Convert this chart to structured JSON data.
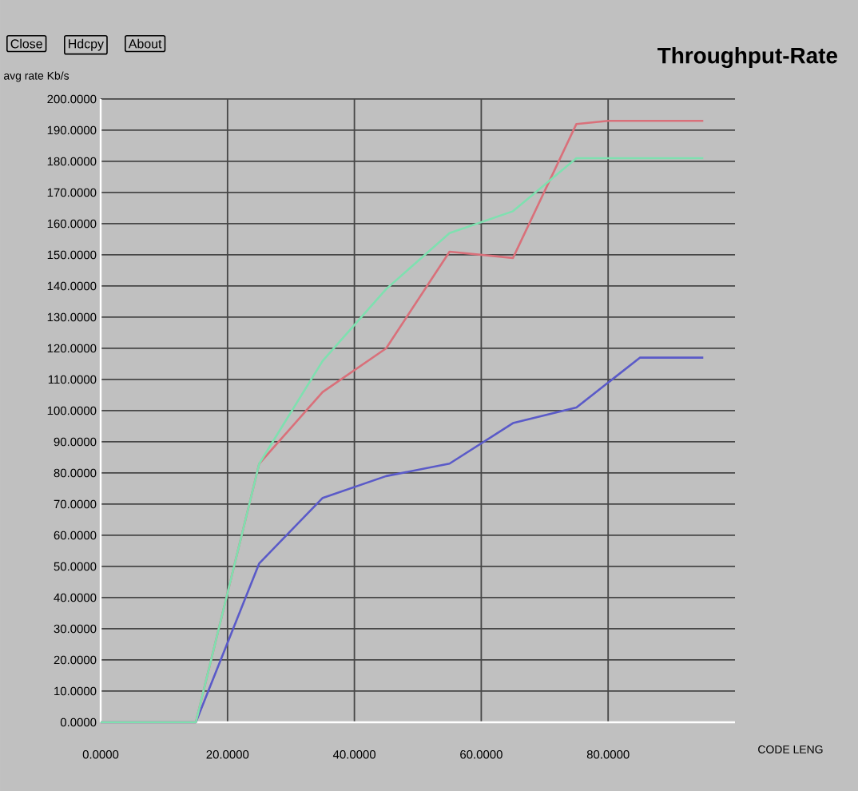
{
  "chart_data": {
    "type": "line",
    "title": "Throughput-Rate",
    "ylabel": "avg rate Kb/s",
    "xlabel": "CODE LENG",
    "annotations": [
      "Close",
      "Hdcpy",
      "About"
    ],
    "x": [
      0,
      15,
      25,
      35,
      45,
      55,
      65,
      75,
      85,
      95
    ],
    "series": [
      {
        "color": "#5a5ac8",
        "values": [
          0,
          0,
          51,
          72,
          79,
          83,
          96,
          101,
          117,
          117
        ]
      },
      {
        "color": "#d9707a",
        "x": [
          0,
          15,
          25,
          35,
          45,
          55,
          65,
          75,
          80,
          95
        ],
        "values": [
          0,
          0,
          83,
          106,
          120,
          151,
          149,
          192,
          193,
          193
        ]
      },
      {
        "color": "#7fe0b0",
        "values": [
          0,
          0,
          83,
          116,
          139,
          157,
          164,
          181,
          181,
          181
        ]
      }
    ],
    "xlim": [
      0,
      100
    ],
    "ylim": [
      0,
      200
    ],
    "xticks": [
      {
        "value": 0,
        "label": "0.0000"
      },
      {
        "value": 20,
        "label": "20.0000"
      },
      {
        "value": 40,
        "label": "40.0000"
      },
      {
        "value": 60,
        "label": "60.0000"
      },
      {
        "value": 80,
        "label": "80.0000"
      }
    ],
    "yticks": [
      {
        "value": 0,
        "label": "0.0000"
      },
      {
        "value": 10,
        "label": "10.0000"
      },
      {
        "value": 20,
        "label": "20.0000"
      },
      {
        "value": 30,
        "label": "30.0000"
      },
      {
        "value": 40,
        "label": "40.0000"
      },
      {
        "value": 50,
        "label": "50.0000"
      },
      {
        "value": 60,
        "label": "60.0000"
      },
      {
        "value": 70,
        "label": "70.0000"
      },
      {
        "value": 80,
        "label": "80.0000"
      },
      {
        "value": 90,
        "label": "90.0000"
      },
      {
        "value": 100,
        "label": "100.0000"
      },
      {
        "value": 110,
        "label": "110.0000"
      },
      {
        "value": 120,
        "label": "120.0000"
      },
      {
        "value": 130,
        "label": "130.0000"
      },
      {
        "value": 140,
        "label": "140.0000"
      },
      {
        "value": 150,
        "label": "150.0000"
      },
      {
        "value": 160,
        "label": "160.0000"
      },
      {
        "value": 170,
        "label": "170.0000"
      },
      {
        "value": 180,
        "label": "180.0000"
      },
      {
        "value": 190,
        "label": "190.0000"
      },
      {
        "value": 200,
        "label": "200.0000"
      }
    ],
    "grid": true,
    "marker": "none",
    "line_style": "solid"
  }
}
